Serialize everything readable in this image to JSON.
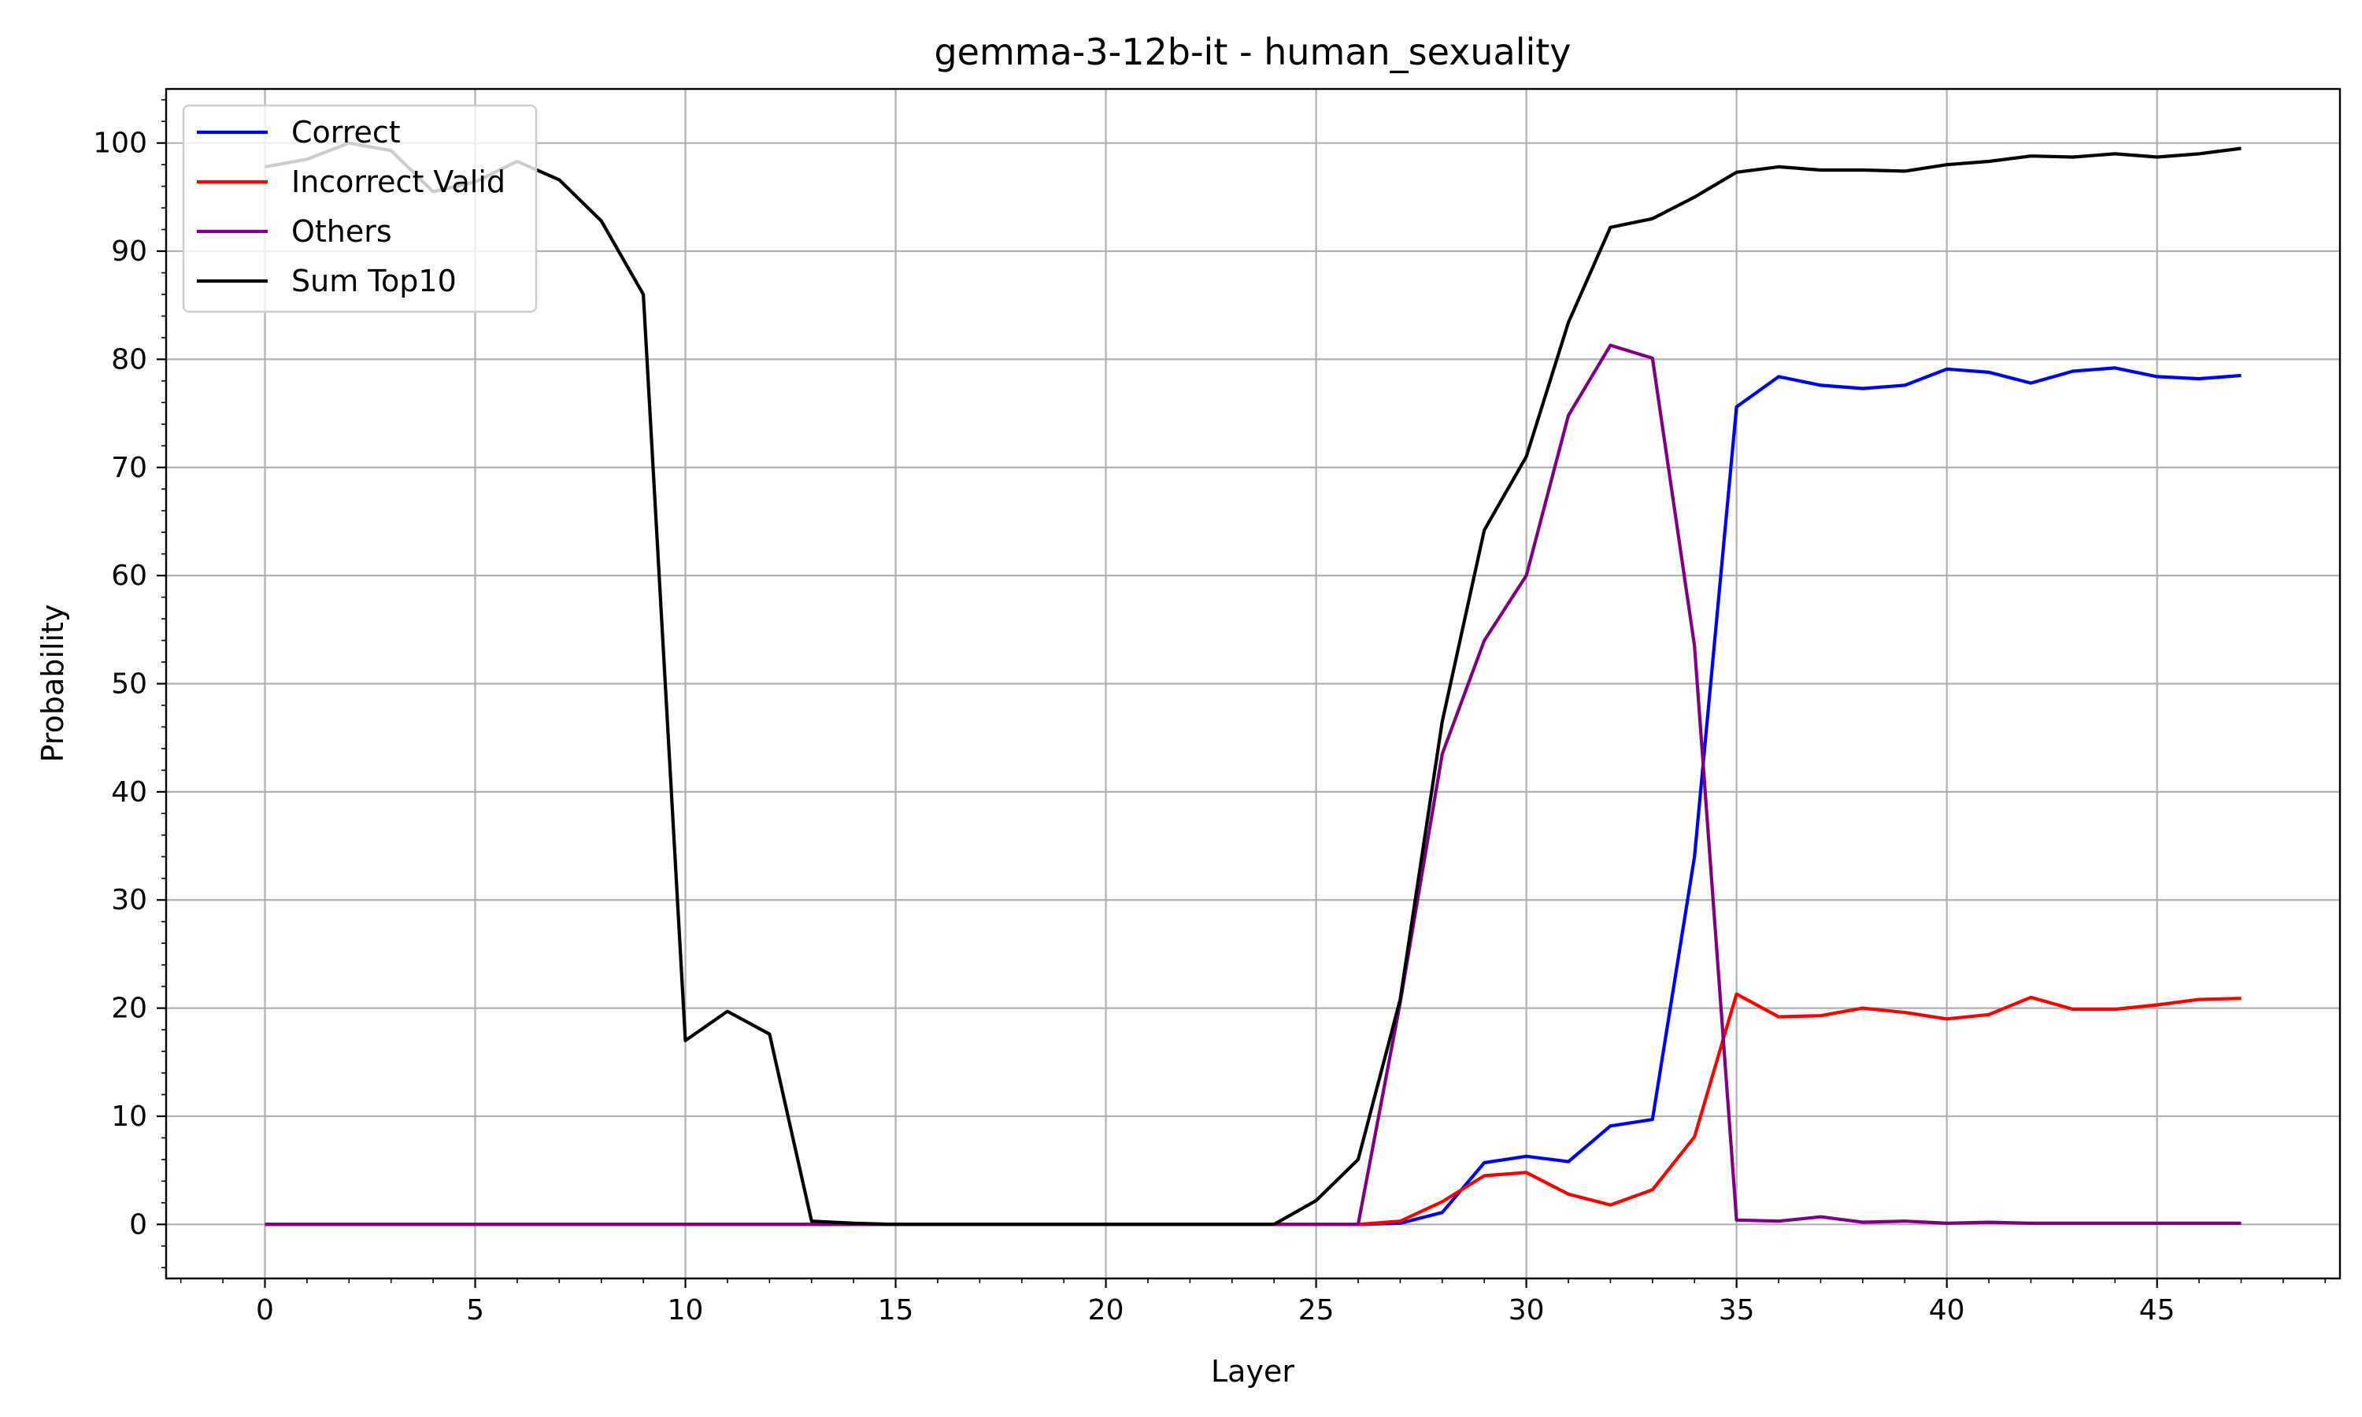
{
  "chart_data": {
    "type": "line",
    "title": "gemma-3-12b-it - human_sexuality",
    "xlabel": "Layer",
    "ylabel": "Probability",
    "xlim": [
      -2.35,
      49.35
    ],
    "ylim": [
      -5,
      105
    ],
    "xticks": [
      0,
      5,
      10,
      15,
      20,
      25,
      30,
      35,
      40,
      45
    ],
    "yticks": [
      0,
      10,
      20,
      30,
      40,
      50,
      60,
      70,
      80,
      90,
      100
    ],
    "grid": true,
    "legend_position": "top-left",
    "x": [
      0,
      1,
      2,
      3,
      4,
      5,
      6,
      7,
      8,
      9,
      10,
      11,
      12,
      13,
      14,
      15,
      16,
      17,
      18,
      19,
      20,
      21,
      22,
      23,
      24,
      25,
      26,
      27,
      28,
      29,
      30,
      31,
      32,
      33,
      34,
      35,
      36,
      37,
      38,
      39,
      40,
      41,
      42,
      43,
      44,
      45,
      46,
      47
    ],
    "series": [
      {
        "name": "Correct",
        "color": "#0000ff",
        "values": [
          0,
          0,
          0,
          0,
          0,
          0,
          0,
          0,
          0,
          0,
          0,
          0,
          0,
          0,
          0,
          0,
          0,
          0,
          0,
          0,
          0,
          0,
          0,
          0,
          0,
          0,
          0,
          0.1,
          1.1,
          5.7,
          6.3,
          5.8,
          9.1,
          9.7,
          34.0,
          75.6,
          78.4,
          77.6,
          77.3,
          77.6,
          79.1,
          78.8,
          77.8,
          78.9,
          79.2,
          78.4,
          78.2,
          78.5
        ]
      },
      {
        "name": "Incorrect Valid",
        "color": "#ff0000",
        "values": [
          0,
          0,
          0,
          0,
          0,
          0,
          0,
          0,
          0,
          0,
          0,
          0,
          0,
          0,
          0,
          0,
          0,
          0,
          0,
          0,
          0,
          0,
          0,
          0,
          0,
          0,
          0,
          0.3,
          2.1,
          4.5,
          4.8,
          2.8,
          1.8,
          3.2,
          8.1,
          21.3,
          19.2,
          19.3,
          20.0,
          19.6,
          19.0,
          19.4,
          21.0,
          19.9,
          19.9,
          20.3,
          20.8,
          20.9
        ]
      },
      {
        "name": "Others",
        "color": "#800080",
        "values": [
          0,
          0,
          0,
          0,
          0,
          0,
          0,
          0,
          0,
          0,
          0,
          0,
          0,
          0,
          0,
          0,
          0,
          0,
          0,
          0,
          0,
          0,
          0,
          0,
          0,
          0,
          0,
          20.5,
          43.5,
          54.0,
          60.0,
          74.8,
          81.3,
          80.1,
          53.5,
          0.4,
          0.3,
          0.7,
          0.2,
          0.3,
          0.1,
          0.2,
          0.1,
          0.1,
          0.1,
          0.1,
          0.1,
          0.1
        ]
      },
      {
        "name": "Sum Top10",
        "color": "#000000",
        "values": [
          97.8,
          98.5,
          100.0,
          99.3,
          95.5,
          96.4,
          98.3,
          96.6,
          92.8,
          86.0,
          17.0,
          19.7,
          17.6,
          0.3,
          0.1,
          0,
          0,
          0,
          0,
          0,
          0,
          0,
          0,
          0,
          0,
          2.2,
          6.0,
          20.8,
          46.5,
          64.2,
          71.0,
          83.4,
          92.2,
          93.0,
          95.0,
          97.3,
          97.8,
          97.5,
          97.5,
          97.4,
          98.0,
          98.3,
          98.8,
          98.7,
          99.0,
          98.7,
          99.0,
          99.5
        ]
      }
    ]
  }
}
